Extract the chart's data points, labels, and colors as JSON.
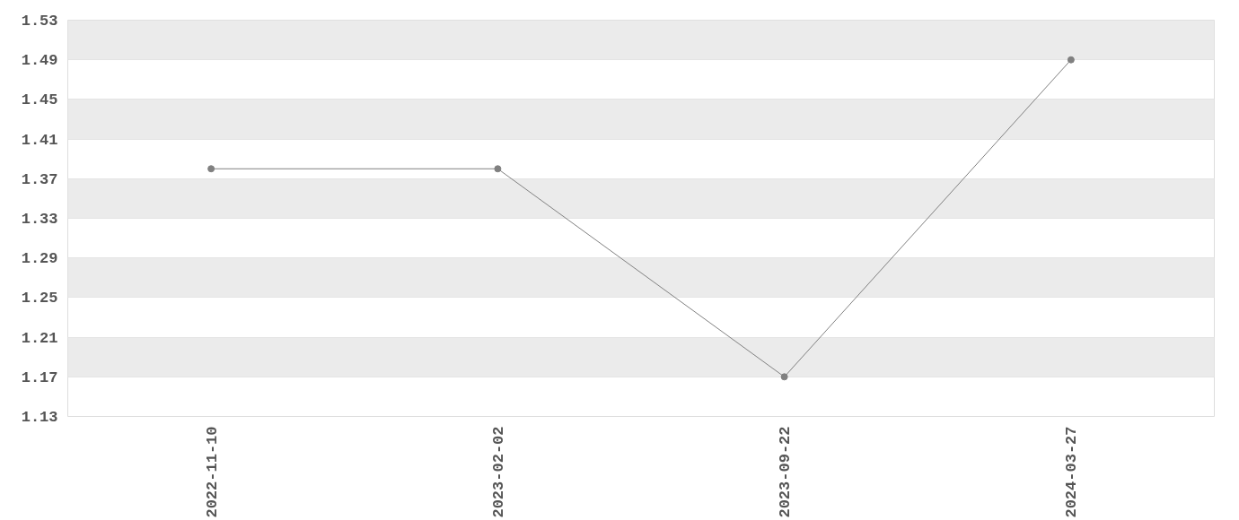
{
  "chart_data": {
    "type": "line",
    "categories": [
      "2022-11-10",
      "2023-02-02",
      "2023-09-22",
      "2024-03-27"
    ],
    "series": [
      {
        "color": "#808080",
        "values": [
          1.38,
          1.38,
          1.17,
          1.49
        ]
      }
    ],
    "ylim": [
      1.13,
      1.53
    ],
    "yticks": [
      1.13,
      1.17,
      1.21,
      1.25,
      1.29,
      1.33,
      1.37,
      1.41,
      1.45,
      1.49,
      1.53
    ],
    "grid": "y",
    "marker": "circle",
    "line_style": "solid"
  }
}
